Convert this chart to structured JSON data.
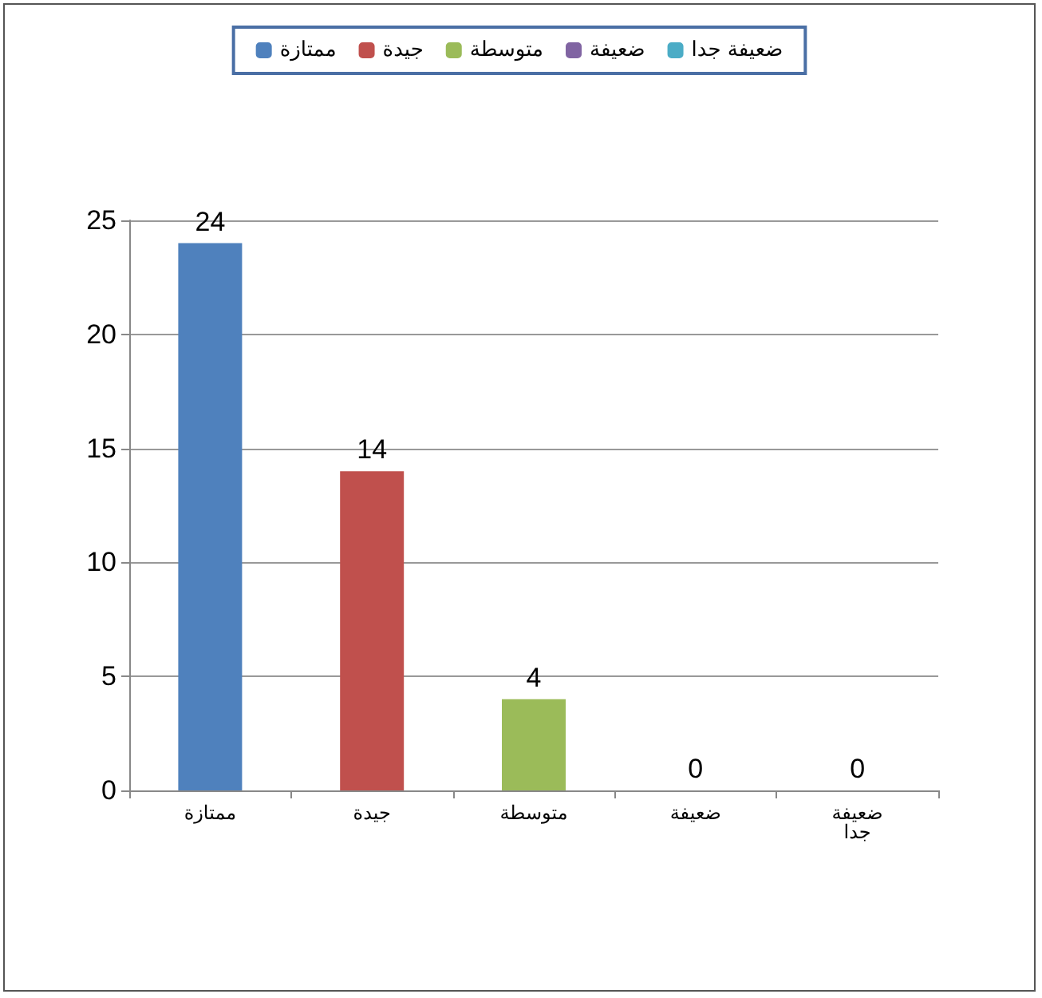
{
  "chart_data": {
    "type": "bar",
    "categories": [
      "ممتازة",
      "جيدة",
      "متوسطة",
      "ضعيفة",
      "ضعيفة جدا"
    ],
    "series": [
      {
        "name": "ممتازة",
        "color": "#4f81bd",
        "values": [
          24,
          null,
          null,
          null,
          null
        ]
      },
      {
        "name": "جيدة",
        "color": "#c0504d",
        "values": [
          null,
          14,
          null,
          null,
          null
        ]
      },
      {
        "name": "متوسطة",
        "color": "#9bbb59",
        "values": [
          null,
          null,
          4,
          null,
          null
        ]
      },
      {
        "name": "ضعيفة",
        "color": "#8064a2",
        "values": [
          null,
          null,
          null,
          0,
          null
        ]
      },
      {
        "name": "ضعيفة جدا",
        "color": "#4bacc6",
        "values": [
          null,
          null,
          null,
          null,
          0
        ]
      }
    ],
    "stacked": true,
    "ylim": [
      0,
      25
    ],
    "yticks": [
      0,
      5,
      10,
      15,
      20,
      25
    ],
    "grid": "y",
    "legend": "top",
    "data_labels": true
  }
}
